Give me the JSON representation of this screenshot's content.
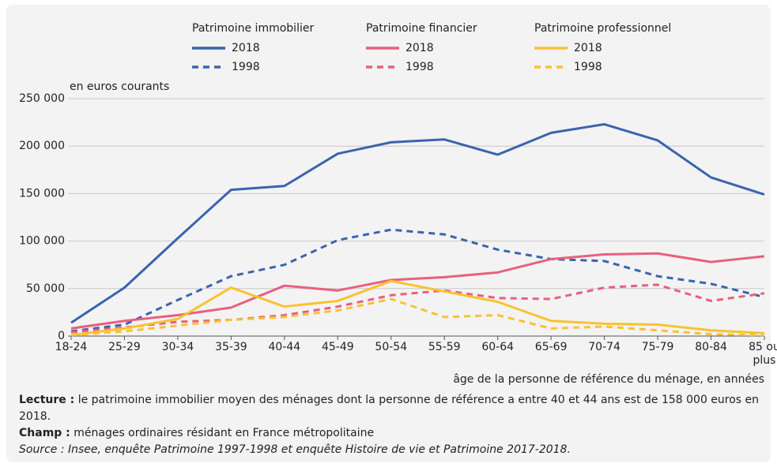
{
  "chart_data": {
    "type": "line",
    "y_unit_label": "en euros courants",
    "x_label": "âge de la personne de référence du ménage, en années",
    "categories": [
      "18-24",
      "25-29",
      "30-34",
      "35-39",
      "40-44",
      "45-49",
      "50-54",
      "55-59",
      "60-64",
      "65-69",
      "70-74",
      "75-79",
      "80-84",
      "85 ou plus"
    ],
    "ylim": [
      0,
      250000
    ],
    "yticks": [
      0,
      {
        "value": 50000,
        "label": "50 000"
      },
      {
        "value": 100000,
        "label": "100 000"
      },
      {
        "value": 150000,
        "label": "150 000"
      },
      {
        "value": 200000,
        "label": "200 000"
      },
      {
        "value": 250000,
        "label": "250 000"
      }
    ],
    "grid": true,
    "groups": [
      {
        "name": "Patrimoine immobilier",
        "color": "#3a64ad",
        "series": [
          {
            "name": "2018",
            "style": "solid",
            "values": [
              14000,
              51000,
              103000,
              154000,
              158000,
              192000,
              204000,
              207000,
              191000,
              214000,
              223000,
              206000,
              167000,
              149000
            ]
          },
          {
            "name": "1998",
            "style": "dashed",
            "values": [
              5000,
              12000,
              38000,
              63000,
              75000,
              101000,
              112000,
              107000,
              91000,
              81000,
              79000,
              63000,
              55000,
              41000
            ]
          }
        ]
      },
      {
        "name": "Patrimoine financier",
        "color": "#e8607e",
        "series": [
          {
            "name": "2018",
            "style": "solid",
            "values": [
              8000,
              16000,
              22000,
              30000,
              53000,
              48000,
              59000,
              62000,
              67000,
              81000,
              86000,
              87000,
              78000,
              84000
            ]
          },
          {
            "name": "1998",
            "style": "dashed",
            "values": [
              4000,
              9000,
              15000,
              17000,
              22000,
              31000,
              43000,
              48000,
              40000,
              39000,
              51000,
              54000,
              37000,
              45000
            ]
          }
        ]
      },
      {
        "name": "Patrimoine professionnel",
        "color": "#f9c232",
        "series": [
          {
            "name": "2018",
            "style": "solid",
            "values": [
              1000,
              8000,
              18000,
              51000,
              31000,
              37000,
              58000,
              47000,
              36000,
              16000,
              13000,
              12000,
              6000,
              3000
            ]
          },
          {
            "name": "1998",
            "style": "dashed",
            "values": [
              1000,
              5000,
              11000,
              17000,
              20000,
              27000,
              39000,
              20000,
              22000,
              8000,
              10000,
              6000,
              2000,
              1000
            ]
          }
        ]
      }
    ],
    "notes": [
      {
        "label": "Lecture :",
        "text": "le patrimoine immobilier moyen des ménages dont la personne de référence a entre 40 et 44 ans est de 158 000 euros en 2018."
      },
      {
        "label": "Champ :",
        "text": "ménages ordinaires résidant en France métropolitaine"
      }
    ],
    "source": "Source : Insee, enquête Patrimoine 1997-1998 et enquête Histoire de vie et Patrimoine 2017-2018."
  }
}
